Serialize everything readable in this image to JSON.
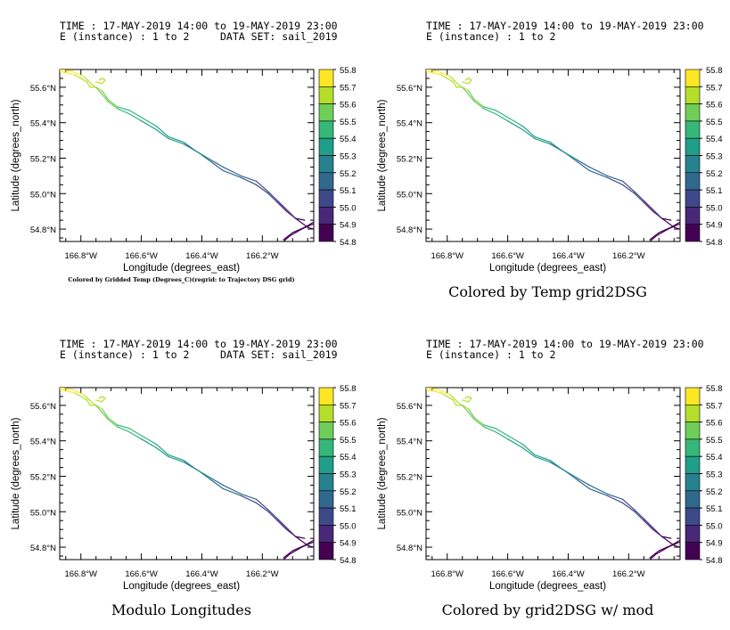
{
  "chart_data": [
    {
      "type": "line",
      "header": {
        "time": "TIME : 17-MAY-2019 14:00 to 19-MAY-2019 23:00",
        "instance": "E (instance) : 1 to 2",
        "dataset": "DATA SET: sail_2019"
      },
      "xlabel": "Longitude (degrees_east)",
      "ylabel": "Latitude (degrees_north)",
      "xlim": [
        -166.87,
        -166.03
      ],
      "ylim": [
        54.73,
        55.7
      ],
      "xticks": [
        "166.8°W",
        "166.6°W",
        "166.4°W",
        "166.2°W"
      ],
      "yticks": [
        "55.6°N",
        "55.4°N",
        "55.2°N",
        "55.0°N",
        "54.8°N"
      ],
      "note": "Colored by Gridded Temp (Degrees_C)(regrid: to Trajectory DSG grid)",
      "caption": "",
      "colorbar": [
        "55.8",
        "55.7",
        "55.6",
        "55.5",
        "55.4",
        "55.3",
        "55.2",
        "55.1",
        "55.0",
        "54.9",
        "54.8"
      ]
    },
    {
      "type": "line",
      "header": {
        "time": "TIME : 17-MAY-2019 14:00 to 19-MAY-2019 23:00",
        "instance": "E (instance) : 1 to 2",
        "dataset": ""
      },
      "xlabel": "Longitude (degrees_east)",
      "ylabel": "Latitude (degrees_north)",
      "xlim": [
        -166.87,
        -166.03
      ],
      "ylim": [
        54.73,
        55.7
      ],
      "xticks": [
        "166.8°W",
        "166.6°W",
        "166.4°W",
        "166.2°W"
      ],
      "yticks": [
        "55.6°N",
        "55.4°N",
        "55.2°N",
        "55.0°N",
        "54.8°N"
      ],
      "note": "",
      "caption": "Colored by Temp grid2DSG",
      "colorbar": [
        "55.8",
        "55.7",
        "55.6",
        "55.5",
        "55.4",
        "55.3",
        "55.2",
        "55.1",
        "55.0",
        "54.9",
        "54.8"
      ]
    },
    {
      "type": "line",
      "header": {
        "time": "TIME : 17-MAY-2019 14:00 to 19-MAY-2019 23:00",
        "instance": "E (instance) : 1 to 2",
        "dataset": "DATA SET: sail_2019"
      },
      "xlabel": "Longitude (degrees_east)",
      "ylabel": "Latitude (degrees_north)",
      "xlim": [
        -166.87,
        -166.03
      ],
      "ylim": [
        54.73,
        55.7
      ],
      "xticks": [
        "166.8°W",
        "166.6°W",
        "166.4°W",
        "166.2°W"
      ],
      "yticks": [
        "55.6°N",
        "55.4°N",
        "55.2°N",
        "55.0°N",
        "54.8°N"
      ],
      "note": "",
      "caption": "Modulo Longitudes",
      "colorbar": [
        "55.8",
        "55.7",
        "55.6",
        "55.5",
        "55.4",
        "55.3",
        "55.2",
        "55.1",
        "55.0",
        "54.9",
        "54.8"
      ]
    },
    {
      "type": "line",
      "header": {
        "time": "TIME : 17-MAY-2019 14:00 to 19-MAY-2019 23:00",
        "instance": "E (instance) : 1 to 2",
        "dataset": ""
      },
      "xlabel": "Longitude (degrees_east)",
      "ylabel": "Latitude (degrees_north)",
      "xlim": [
        -166.87,
        -166.03
      ],
      "ylim": [
        54.73,
        55.7
      ],
      "xticks": [
        "166.8°W",
        "166.6°W",
        "166.4°W",
        "166.2°W"
      ],
      "yticks": [
        "55.6°N",
        "55.4°N",
        "55.2°N",
        "55.0°N",
        "54.8°N"
      ],
      "note": "",
      "caption": "Colored by grid2DSG w/ mod",
      "colorbar": [
        "55.8",
        "55.7",
        "55.6",
        "55.5",
        "55.4",
        "55.3",
        "55.2",
        "55.1",
        "55.0",
        "54.9",
        "54.8"
      ]
    }
  ],
  "tracks": [
    {
      "name": "",
      "lon": [
        -166.87,
        -166.83,
        -166.79,
        -166.76,
        -166.73,
        -166.71,
        -166.68,
        -166.64,
        -166.6,
        -166.55,
        -166.51,
        -166.46,
        -166.42,
        -166.37,
        -166.33,
        -166.27,
        -166.22,
        -166.18,
        -166.15,
        -166.12,
        -166.09,
        -166.06
      ],
      "lat": [
        55.7,
        55.69,
        55.66,
        55.61,
        55.58,
        55.53,
        55.49,
        55.47,
        55.43,
        55.38,
        55.32,
        55.29,
        55.24,
        55.19,
        55.15,
        55.1,
        55.07,
        55.01,
        54.96,
        54.91,
        54.86,
        54.85
      ],
      "temp": [
        55.75,
        55.72,
        55.68,
        55.63,
        55.58,
        55.54,
        55.5,
        55.46,
        55.43,
        55.4,
        55.36,
        55.3,
        55.24,
        55.2,
        55.16,
        55.12,
        55.09,
        55.04,
        55.0,
        54.96,
        54.92,
        54.86
      ]
    },
    {
      "name": "",
      "lon": [
        -166.87,
        -166.82,
        -166.78,
        -166.77,
        -166.75,
        -166.73,
        -166.71,
        -166.68,
        -166.64,
        -166.6,
        -166.55,
        -166.51,
        -166.46,
        -166.41,
        -166.37,
        -166.33,
        -166.27,
        -166.22,
        -166.18,
        -166.15,
        -166.12,
        -166.09,
        -166.05,
        -166.03
      ],
      "lat": [
        55.69,
        55.67,
        55.63,
        55.6,
        55.6,
        55.56,
        55.52,
        55.48,
        55.45,
        55.41,
        55.36,
        55.31,
        55.28,
        55.23,
        55.18,
        55.13,
        55.09,
        55.05,
        55.0,
        54.95,
        54.9,
        54.86,
        54.81,
        54.8
      ],
      "temp": [
        55.74,
        55.71,
        55.67,
        55.62,
        55.6,
        55.56,
        55.52,
        55.48,
        55.44,
        55.41,
        55.37,
        55.33,
        55.28,
        55.23,
        55.19,
        55.15,
        55.11,
        55.07,
        55.02,
        54.98,
        54.94,
        54.9,
        54.85,
        54.82
      ]
    },
    {
      "name": "",
      "lon": [
        -166.74,
        -166.73,
        -166.72,
        -166.73,
        -166.75
      ],
      "lat": [
        55.64,
        55.65,
        55.64,
        55.62,
        55.63
      ],
      "temp": [
        55.64,
        55.64,
        55.63,
        55.62,
        55.62
      ]
    },
    {
      "name": "",
      "lon": [
        -166.03,
        -166.06,
        -166.1,
        -166.13
      ],
      "lat": [
        54.84,
        54.81,
        54.78,
        54.74
      ],
      "temp": [
        54.82,
        54.81,
        54.8,
        54.79
      ]
    },
    {
      "name": "",
      "lon": [
        -166.03,
        -166.07,
        -166.11,
        -166.13
      ],
      "lat": [
        54.83,
        54.8,
        54.76,
        54.73
      ],
      "temp": [
        54.82,
        54.81,
        54.8,
        54.79
      ]
    }
  ],
  "colors": {
    "palette": [
      "#fde725",
      "#b5de2b",
      "#6ece58",
      "#35b779",
      "#1f9e89",
      "#26828e",
      "#31688e",
      "#3e4989",
      "#482878",
      "#440154"
    ]
  }
}
